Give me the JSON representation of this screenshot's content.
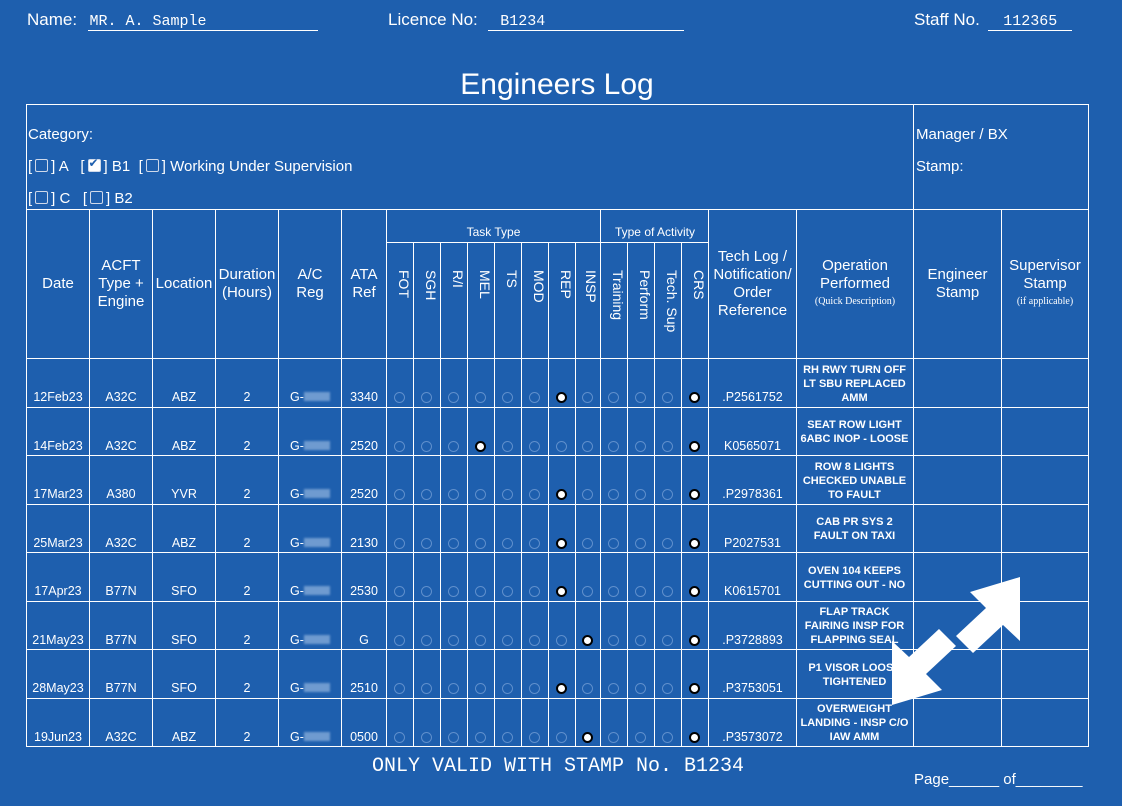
{
  "header": {
    "name_label": "Name:",
    "name_value": "MR. A. Sample",
    "licence_label": "Licence No:",
    "licence_value": "B1234",
    "staff_label": "Staff No.",
    "staff_value": "112365"
  },
  "title": "Engineers Log",
  "category": {
    "label": "Category:",
    "options": [
      {
        "label": "A",
        "checked": false
      },
      {
        "label": "B1",
        "checked": true
      },
      {
        "label": "Working Under Supervision",
        "checked": false
      },
      {
        "label": "C",
        "checked": false
      },
      {
        "label": "B2",
        "checked": false
      }
    ]
  },
  "manager": {
    "label": "Manager / BX",
    "stamp_label": "Stamp:"
  },
  "columns": {
    "date": "Date",
    "acft": "ACFT Type + Engine",
    "location": "Location",
    "duration": "Duration (Hours)",
    "reg": "A/C Reg",
    "ata": "ATA Ref",
    "task_group": "Task Type",
    "activity_group": "Type of Activity",
    "task_types": [
      "FOT",
      "SGH",
      "R/I",
      "MEL",
      "TS",
      "MOD",
      "REP",
      "INSP"
    ],
    "activity_types": [
      "Training",
      "Perform",
      "Tech. Sup",
      "CRS"
    ],
    "techlog": "Tech Log / Notification/ Order Reference",
    "operation": "Operation Performed",
    "operation_sub": "(Quick Description)",
    "engineer_stamp": "Engineer Stamp",
    "supervisor_stamp": "Supervisor Stamp",
    "supervisor_sub": "(if applicable)"
  },
  "rows": [
    {
      "date": "12Feb23",
      "acft": "A32C",
      "loc": "ABZ",
      "dur": "2",
      "reg": "G-",
      "ata": "3340",
      "marks": [
        "REP",
        "CRS"
      ],
      "ref": ".P2561752",
      "op": "RH RWY TURN OFF LT SBU REPLACED AMM"
    },
    {
      "date": "14Feb23",
      "acft": "A32C",
      "loc": "ABZ",
      "dur": "2",
      "reg": "G-",
      "ata": "2520",
      "marks": [
        "MEL",
        "CRS"
      ],
      "ref": "K0565071",
      "op": "SEAT ROW LIGHT 6ABC INOP - LOOSE"
    },
    {
      "date": "17Mar23",
      "acft": "A380",
      "loc": "YVR",
      "dur": "2",
      "reg": "G-",
      "ata": "2520",
      "marks": [
        "REP",
        "CRS"
      ],
      "ref": ".P2978361",
      "op": "ROW 8 LIGHTS CHECKED UNABLE TO FAULT"
    },
    {
      "date": "25Mar23",
      "acft": "A32C",
      "loc": "ABZ",
      "dur": "2",
      "reg": "G-",
      "ata": "2130",
      "marks": [
        "REP",
        "CRS"
      ],
      "ref": "P2027531",
      "op": "CAB PR SYS 2 FAULT ON TAXI"
    },
    {
      "date": "17Apr23",
      "acft": "B77N",
      "loc": "SFO",
      "dur": "2",
      "reg": "G-",
      "ata": "2530",
      "marks": [
        "REP",
        "CRS"
      ],
      "ref": "K0615701",
      "op": "OVEN 104 KEEPS CUTTING OUT - NO"
    },
    {
      "date": "21May23",
      "acft": "B77N",
      "loc": "SFO",
      "dur": "2",
      "reg": "G-",
      "ata": "G",
      "marks": [
        "INSP",
        "CRS"
      ],
      "ref": ".P3728893",
      "op": "FLAP TRACK FAIRING INSP FOR FLAPPING SEAL"
    },
    {
      "date": "28May23",
      "acft": "B77N",
      "loc": "SFO",
      "dur": "2",
      "reg": "G-",
      "ata": "2510",
      "marks": [
        "REP",
        "CRS"
      ],
      "ref": ".P3753051",
      "op": "P1 VISOR LOOSE TIGHTENED"
    },
    {
      "date": "19Jun23",
      "acft": "A32C",
      "loc": "ABZ",
      "dur": "2",
      "reg": "G-",
      "ata": "0500",
      "marks": [
        "INSP",
        "CRS"
      ],
      "ref": ".P3573072",
      "op": "OVERWEIGHT LANDING - INSP C/O IAW AMM"
    }
  ],
  "footer": {
    "validity": "ONLY VALID WITH STAMP No. B1234",
    "page": "Page______ of________"
  },
  "icons": {
    "expand": "expand-arrows-icon"
  },
  "colors": {
    "background": "#1e5fae",
    "lines": "#ffffff"
  }
}
